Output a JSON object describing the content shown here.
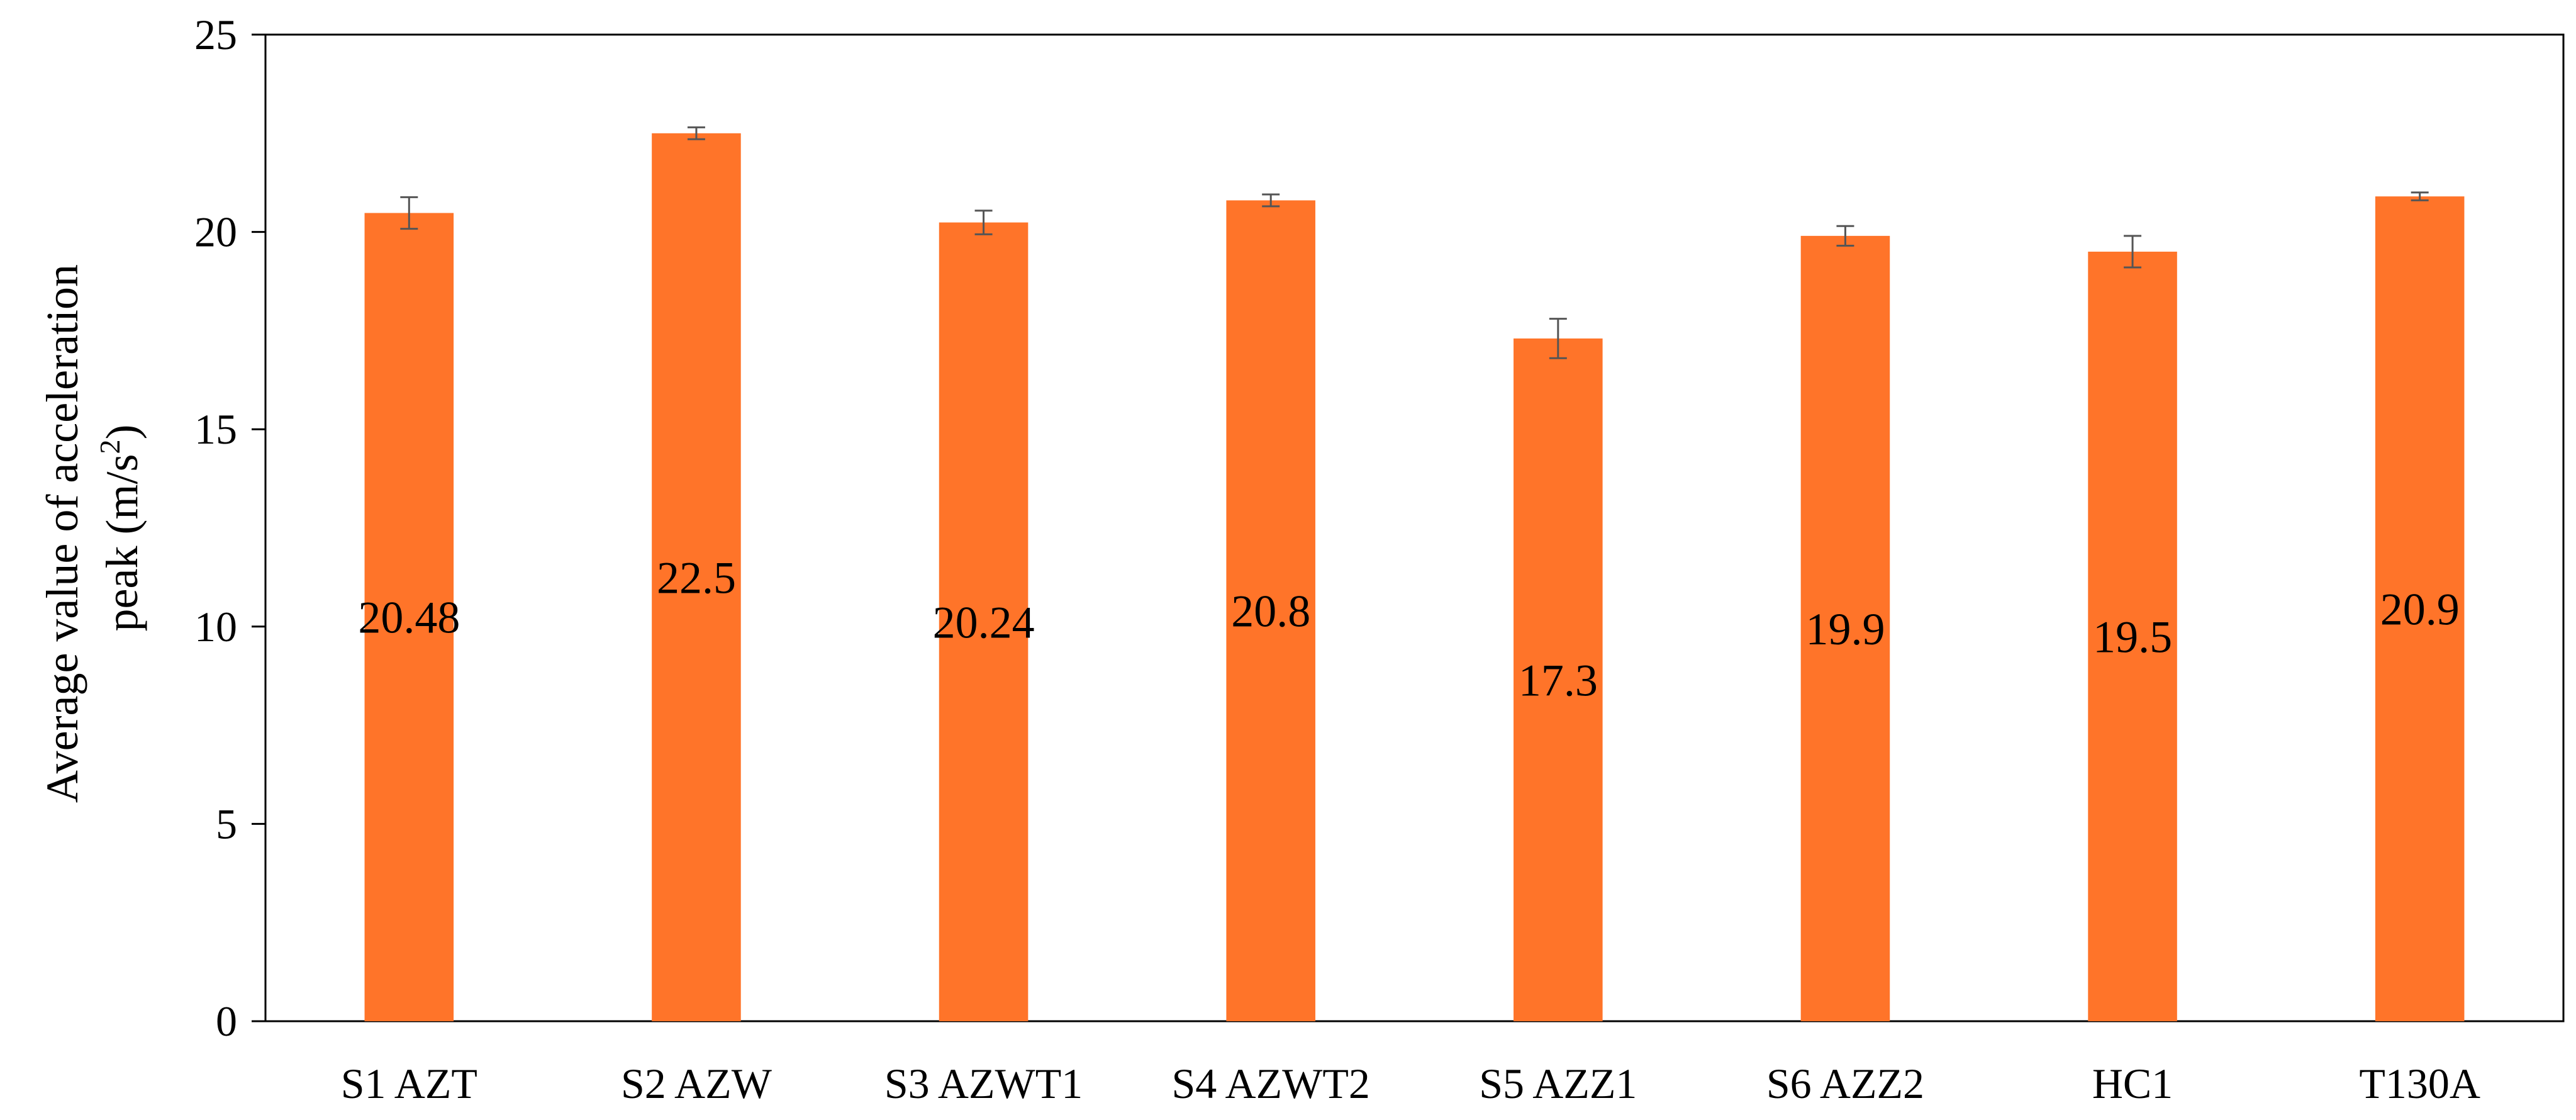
{
  "chart_data": {
    "type": "bar",
    "title": "",
    "xlabel": "",
    "ylabel_line1": "Average value of acceleration",
    "ylabel_line2_prefix": "peak (m/s",
    "ylabel_line2_sup": "2",
    "ylabel_line2_suffix": ")",
    "ylim": [
      0,
      25
    ],
    "yticks": [
      0,
      5,
      10,
      15,
      20,
      25
    ],
    "grid": false,
    "legend": "none",
    "bar_color": "#FF7429",
    "error_bar_color": "#555555",
    "categories": [
      "S1 AZT",
      "S2 AZW",
      "S3 AZWT1",
      "S4 AZWT2",
      "S5 AZZ1",
      "S6 AZZ2",
      "HC1",
      "T130A"
    ],
    "values": [
      20.48,
      22.5,
      20.24,
      20.8,
      17.3,
      19.9,
      19.5,
      20.9
    ],
    "value_labels": [
      "20.48",
      "22.5",
      "20.24",
      "20.8",
      "17.3",
      "19.9",
      "19.5",
      "20.9"
    ],
    "errors": [
      0.4,
      0.15,
      0.3,
      0.15,
      0.5,
      0.25,
      0.4,
      0.1
    ]
  }
}
